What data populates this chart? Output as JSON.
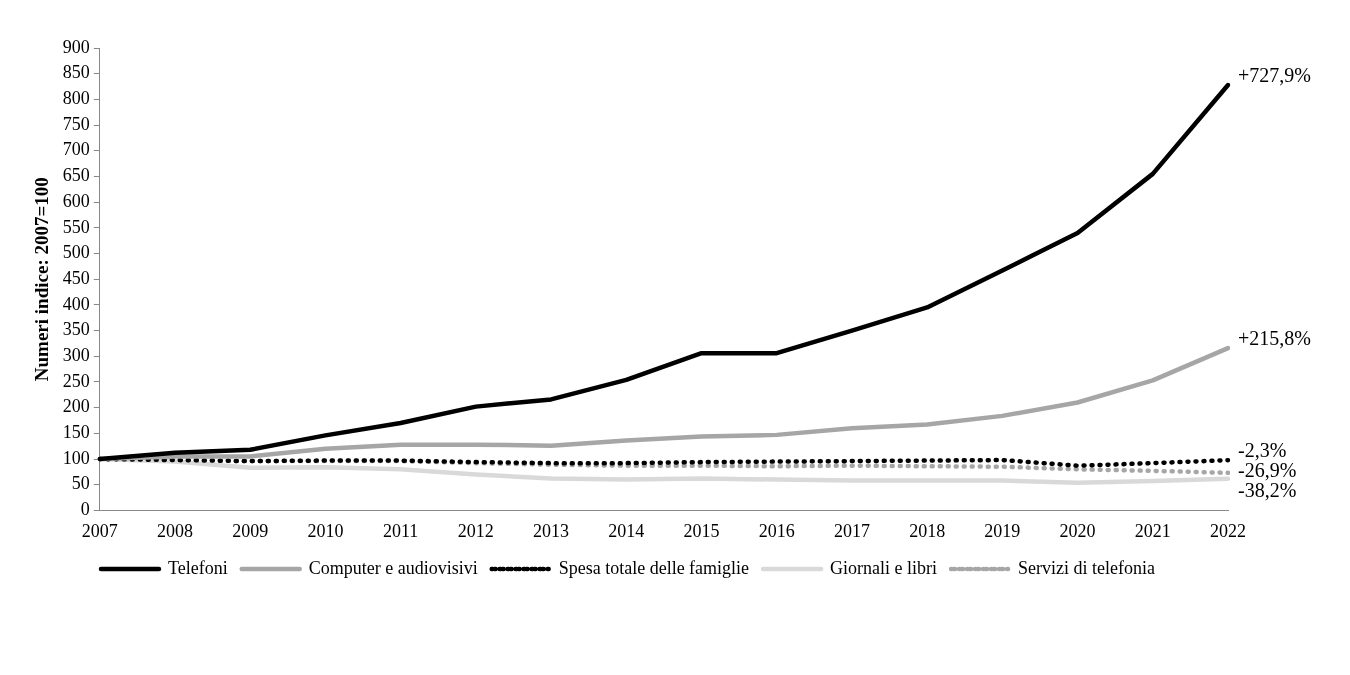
{
  "chart_data": {
    "type": "line",
    "ylabel": "Numeri indice: 2007=100",
    "categories": [
      "2007",
      "2008",
      "2009",
      "2010",
      "2011",
      "2012",
      "2013",
      "2014",
      "2015",
      "2016",
      "2017",
      "2018",
      "2019",
      "2020",
      "2021",
      "2022"
    ],
    "series": [
      {
        "name": "Telefoni",
        "color": "#000000",
        "line_style": "solid",
        "values": [
          100,
          112,
          118,
          146,
          170,
          202,
          216,
          254,
          306,
          306,
          350,
          395,
          467,
          540,
          655,
          827.9
        ]
      },
      {
        "name": "Computer e audiovisivi",
        "color": "#a6a6a6",
        "line_style": "solid",
        "values": [
          100,
          105,
          105,
          120,
          128,
          128,
          126,
          136,
          144,
          147,
          160,
          167,
          184,
          210,
          253,
          315.8
        ]
      },
      {
        "name": "Spesa totale delle famiglie",
        "color": "#000000",
        "line_style": "dotted",
        "values": [
          100,
          98,
          96,
          97,
          97,
          94,
          92,
          92,
          94,
          95,
          96,
          97,
          98,
          87,
          92,
          97.7
        ]
      },
      {
        "name": "Giornali e libri",
        "color": "#d9d9d9",
        "line_style": "solid",
        "values": [
          100,
          95,
          83,
          84,
          80,
          70,
          62,
          60,
          62,
          60,
          58,
          58,
          58,
          54,
          57,
          61.8
        ]
      },
      {
        "name": "Servizi di telefonia",
        "color": "#a6a6a6",
        "line_style": "dotted",
        "values": [
          100,
          98,
          96,
          96,
          96,
          92,
          89,
          87,
          87,
          86,
          87,
          86,
          85,
          80,
          77,
          73.1
        ]
      }
    ],
    "ylim": [
      0,
      900
    ],
    "yticks": [
      0,
      50,
      100,
      150,
      200,
      250,
      300,
      350,
      400,
      450,
      500,
      550,
      600,
      650,
      700,
      750,
      800,
      850,
      900
    ],
    "grid": false,
    "legend": "bottom",
    "marker": "none",
    "annotations": [
      {
        "text": "+727,9%",
        "x": "2022",
        "y": 827.9
      },
      {
        "text": "+215,8%",
        "x": "2022",
        "y": 315.8
      },
      {
        "text": "-2,3%",
        "x": "2022",
        "y": 97.7
      },
      {
        "text": "-26,9%",
        "x": "2022",
        "y": 73.1
      },
      {
        "text": "-38,2%",
        "x": "2022",
        "y": 61.8
      }
    ]
  }
}
